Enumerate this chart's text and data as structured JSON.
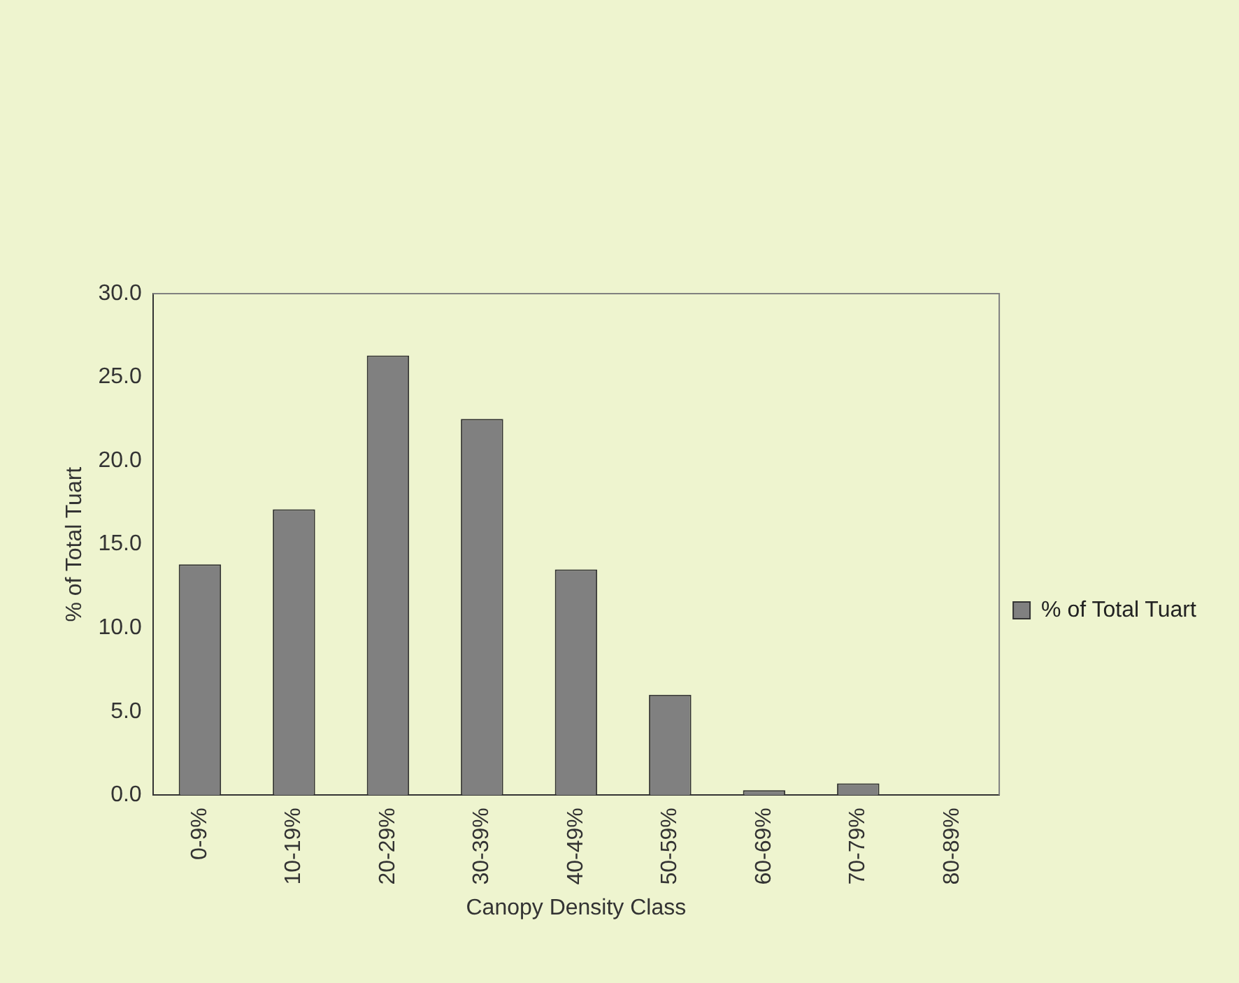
{
  "chart_data": {
    "type": "bar",
    "xlabel": "Canopy Density Class",
    "ylabel": "% of Total Tuart",
    "categories": [
      "0-9%",
      "10-19%",
      "20-29%",
      "30-39%",
      "40-49%",
      "50-59%",
      "60-69%",
      "70-79%",
      "80-89%"
    ],
    "series": [
      {
        "name": "% of Total Tuart",
        "color": "#808080",
        "values": [
          13.8,
          17.1,
          26.3,
          22.5,
          13.5,
          6.0,
          0.3,
          0.7,
          0
        ]
      }
    ],
    "ylim": [
      0,
      30
    ],
    "yticks": [
      {
        "value": 0,
        "label": "0.0"
      },
      {
        "value": 5,
        "label": "5.0"
      },
      {
        "value": 10,
        "label": "10.0"
      },
      {
        "value": 15,
        "label": "15.0"
      },
      {
        "value": 20,
        "label": "20.0"
      },
      {
        "value": 25,
        "label": "25.0"
      },
      {
        "value": 30,
        "label": "30.0"
      }
    ],
    "grid": false,
    "legend": "right"
  }
}
